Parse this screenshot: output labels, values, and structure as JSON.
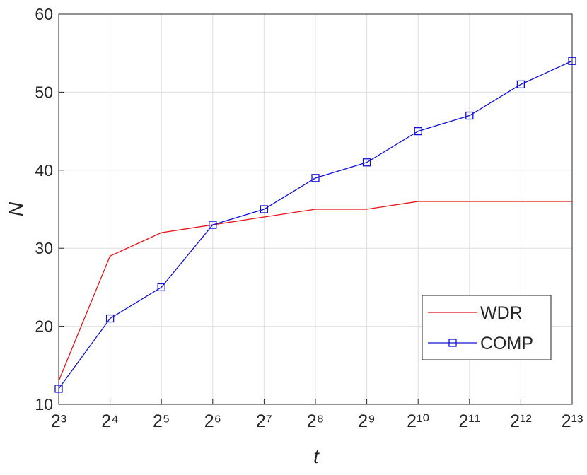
{
  "chart_data": {
    "type": "line",
    "xlabel": "t",
    "ylabel": "N",
    "x": [
      8,
      16,
      32,
      64,
      128,
      256,
      512,
      1024,
      2048,
      4096,
      8192
    ],
    "series": [
      {
        "name": "WDR",
        "color": "#e8141a",
        "marker": "none",
        "values": [
          13,
          29,
          32,
          33,
          34,
          35,
          35,
          36,
          36,
          36,
          36
        ]
      },
      {
        "name": "COMP",
        "color": "#1010d8",
        "marker": "square",
        "values": [
          12,
          21,
          25,
          33,
          35,
          39,
          41,
          45,
          47,
          51,
          54
        ]
      }
    ],
    "xscale": "log2",
    "xlim": [
      8,
      8192
    ],
    "xticks": [
      {
        "value": 8,
        "label": "2³"
      },
      {
        "value": 16,
        "label": "2⁴"
      },
      {
        "value": 32,
        "label": "2⁵"
      },
      {
        "value": 64,
        "label": "2⁶"
      },
      {
        "value": 128,
        "label": "2⁷"
      },
      {
        "value": 256,
        "label": "2⁸"
      },
      {
        "value": 512,
        "label": "2⁹"
      },
      {
        "value": 1024,
        "label": "2¹⁰"
      },
      {
        "value": 2048,
        "label": "2¹¹"
      },
      {
        "value": 4096,
        "label": "2¹²"
      },
      {
        "value": 8192,
        "label": "2¹³"
      }
    ],
    "ylim": [
      10,
      60
    ],
    "yticks": [
      10,
      20,
      30,
      40,
      50,
      60
    ],
    "grid": true,
    "legend": "lower right"
  }
}
